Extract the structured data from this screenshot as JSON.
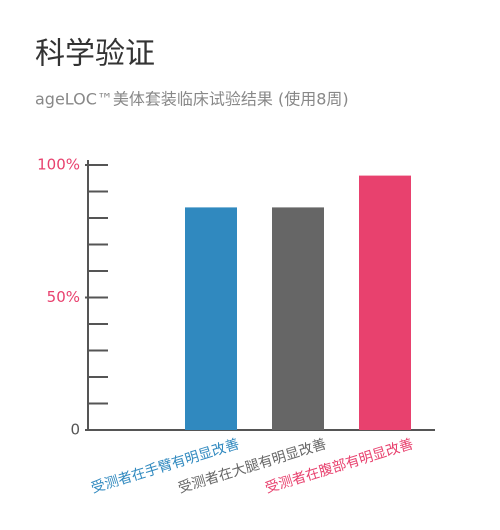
{
  "chart_data": {
    "type": "bar",
    "title": "科学验证",
    "subtitle": "ageLOC™美体套装临床试验结果 (使用8周)",
    "categories": [
      "受测者在手臂有明显改善",
      "受测者在大腿有明显改善",
      "受测者在腹部有明显改善"
    ],
    "values": [
      84,
      84,
      96
    ],
    "colors": [
      "#3089bf",
      "#666666",
      "#e8416e"
    ],
    "ylim": [
      0,
      100
    ],
    "yticks": [
      {
        "value": 0,
        "label": "0"
      },
      {
        "value": 50,
        "label": "50%"
      },
      {
        "value": 100,
        "label": "100%"
      }
    ],
    "ytick_colors": [
      "#555555",
      "#e8416e",
      "#e8416e"
    ],
    "minor_yticks": [
      10,
      20,
      30,
      40,
      60,
      70,
      80,
      90
    ]
  }
}
